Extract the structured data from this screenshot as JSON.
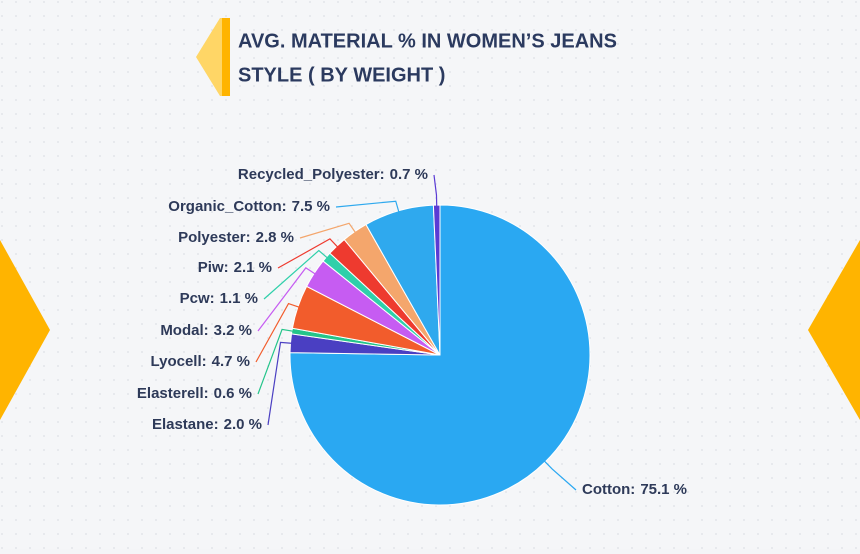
{
  "chart_data": {
    "type": "pie",
    "title": [
      "AVG. MATERIAL % IN WOMEN’S JEANS",
      "STYLE ( BY WEIGHT )"
    ],
    "categories": [
      "Cotton:",
      "Elastane:",
      "Elasterell:",
      "Lyocell:",
      "Modal:",
      "Pcw:",
      "Piw:",
      "Polyester:",
      "Organic_Cotton:",
      "Recycled_Polyester:"
    ],
    "values": [
      75.1,
      2.0,
      0.6,
      4.7,
      3.2,
      1.1,
      2.1,
      2.8,
      7.5,
      0.7
    ],
    "value_labels": [
      "75.1 %",
      "2.0 %",
      "0.6 %",
      "4.7 %",
      "3.2 %",
      "1.1 %",
      "2.1 %",
      "2.8 %",
      "7.5 %",
      "0.7 %"
    ],
    "colors": [
      "#2aa8f2",
      "#4a3fc2",
      "#24c48a",
      "#f25c2c",
      "#c65cf2",
      "#2fd0aa",
      "#ee3a2f",
      "#f4a66c",
      "#2fa9ee",
      "#5a3bd4"
    ]
  }
}
